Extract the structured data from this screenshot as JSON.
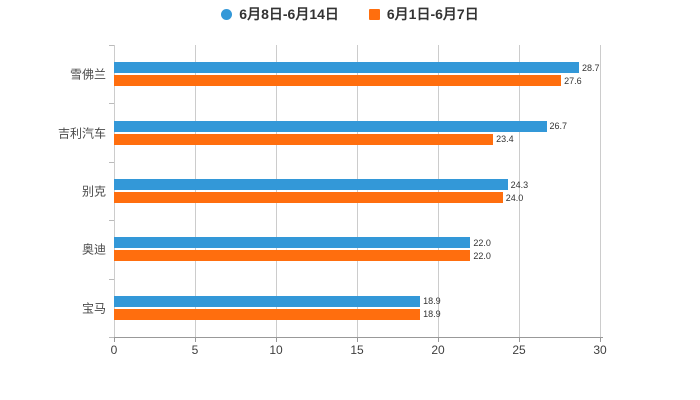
{
  "legend": {
    "items": [
      {
        "label": "6月8日-6月14日",
        "color": "#3398d8",
        "marker": "circle"
      },
      {
        "label": "6月1日-6月7日",
        "color": "#ff6e0e",
        "marker": "square"
      }
    ]
  },
  "chart_data": {
    "type": "bar",
    "orientation": "horizontal",
    "title": "",
    "xlabel": "",
    "ylabel": "",
    "categories": [
      "雪佛兰",
      "吉利汽车",
      "别克",
      "奥迪",
      "宝马"
    ],
    "series": [
      {
        "name": "6月8日-6月14日",
        "color": "#3398d8",
        "values": [
          28.7,
          26.7,
          24.3,
          22.0,
          18.9
        ]
      },
      {
        "name": "6月1日-6月7日",
        "color": "#ff6e0e",
        "values": [
          27.6,
          23.4,
          24.0,
          22.0,
          18.9
        ]
      }
    ],
    "x_ticks": [
      0,
      5,
      10,
      15,
      20,
      25,
      30
    ],
    "xlim": [
      0,
      30
    ],
    "grid": true,
    "legend_position": "top",
    "value_labels_visible": true
  },
  "colors": {
    "background": "#ffffff",
    "gridline": "#cccccc",
    "axis_line": "#999999",
    "tick_label": "#3f3f3f",
    "category_label": "#4a4a4a",
    "value_label": "#333333"
  }
}
